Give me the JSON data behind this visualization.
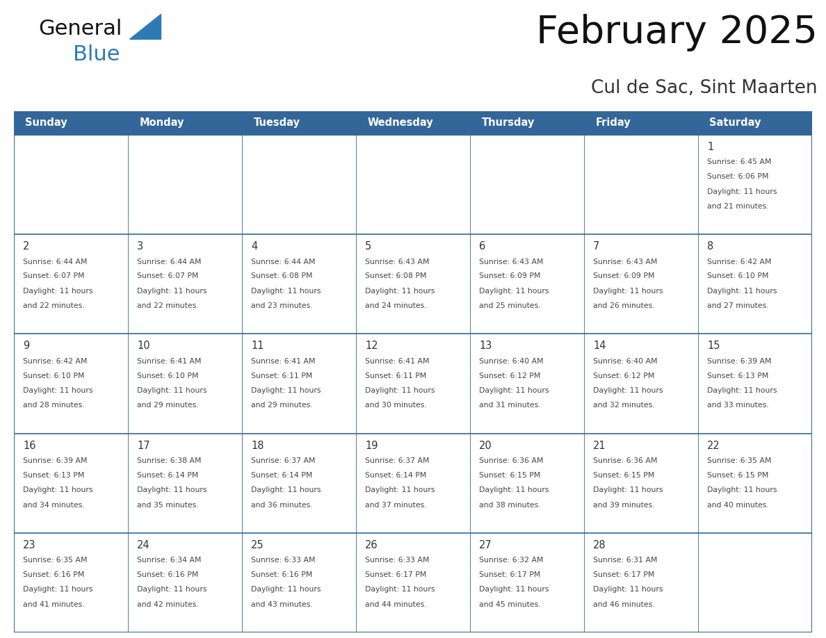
{
  "title": "February 2025",
  "subtitle": "Cul de Sac, Sint Maarten",
  "days_of_week": [
    "Sunday",
    "Monday",
    "Tuesday",
    "Wednesday",
    "Thursday",
    "Friday",
    "Saturday"
  ],
  "header_bg": "#336699",
  "header_text": "#ffffff",
  "cell_border_color": "#336699",
  "row_divider_color": "#336699",
  "cell_bg": "#ffffff",
  "day_number_color": "#333333",
  "cell_text_color": "#444444",
  "logo_general_color": "#111111",
  "logo_blue_color": "#2e7ab5",
  "calendar": [
    [
      null,
      null,
      null,
      null,
      null,
      null,
      {
        "day": 1,
        "sunrise": "6:45 AM",
        "sunset": "6:06 PM",
        "daylight_hours": 11,
        "daylight_minutes": 21
      }
    ],
    [
      {
        "day": 2,
        "sunrise": "6:44 AM",
        "sunset": "6:07 PM",
        "daylight_hours": 11,
        "daylight_minutes": 22
      },
      {
        "day": 3,
        "sunrise": "6:44 AM",
        "sunset": "6:07 PM",
        "daylight_hours": 11,
        "daylight_minutes": 22
      },
      {
        "day": 4,
        "sunrise": "6:44 AM",
        "sunset": "6:08 PM",
        "daylight_hours": 11,
        "daylight_minutes": 23
      },
      {
        "day": 5,
        "sunrise": "6:43 AM",
        "sunset": "6:08 PM",
        "daylight_hours": 11,
        "daylight_minutes": 24
      },
      {
        "day": 6,
        "sunrise": "6:43 AM",
        "sunset": "6:09 PM",
        "daylight_hours": 11,
        "daylight_minutes": 25
      },
      {
        "day": 7,
        "sunrise": "6:43 AM",
        "sunset": "6:09 PM",
        "daylight_hours": 11,
        "daylight_minutes": 26
      },
      {
        "day": 8,
        "sunrise": "6:42 AM",
        "sunset": "6:10 PM",
        "daylight_hours": 11,
        "daylight_minutes": 27
      }
    ],
    [
      {
        "day": 9,
        "sunrise": "6:42 AM",
        "sunset": "6:10 PM",
        "daylight_hours": 11,
        "daylight_minutes": 28
      },
      {
        "day": 10,
        "sunrise": "6:41 AM",
        "sunset": "6:10 PM",
        "daylight_hours": 11,
        "daylight_minutes": 29
      },
      {
        "day": 11,
        "sunrise": "6:41 AM",
        "sunset": "6:11 PM",
        "daylight_hours": 11,
        "daylight_minutes": 29
      },
      {
        "day": 12,
        "sunrise": "6:41 AM",
        "sunset": "6:11 PM",
        "daylight_hours": 11,
        "daylight_minutes": 30
      },
      {
        "day": 13,
        "sunrise": "6:40 AM",
        "sunset": "6:12 PM",
        "daylight_hours": 11,
        "daylight_minutes": 31
      },
      {
        "day": 14,
        "sunrise": "6:40 AM",
        "sunset": "6:12 PM",
        "daylight_hours": 11,
        "daylight_minutes": 32
      },
      {
        "day": 15,
        "sunrise": "6:39 AM",
        "sunset": "6:13 PM",
        "daylight_hours": 11,
        "daylight_minutes": 33
      }
    ],
    [
      {
        "day": 16,
        "sunrise": "6:39 AM",
        "sunset": "6:13 PM",
        "daylight_hours": 11,
        "daylight_minutes": 34
      },
      {
        "day": 17,
        "sunrise": "6:38 AM",
        "sunset": "6:14 PM",
        "daylight_hours": 11,
        "daylight_minutes": 35
      },
      {
        "day": 18,
        "sunrise": "6:37 AM",
        "sunset": "6:14 PM",
        "daylight_hours": 11,
        "daylight_minutes": 36
      },
      {
        "day": 19,
        "sunrise": "6:37 AM",
        "sunset": "6:14 PM",
        "daylight_hours": 11,
        "daylight_minutes": 37
      },
      {
        "day": 20,
        "sunrise": "6:36 AM",
        "sunset": "6:15 PM",
        "daylight_hours": 11,
        "daylight_minutes": 38
      },
      {
        "day": 21,
        "sunrise": "6:36 AM",
        "sunset": "6:15 PM",
        "daylight_hours": 11,
        "daylight_minutes": 39
      },
      {
        "day": 22,
        "sunrise": "6:35 AM",
        "sunset": "6:15 PM",
        "daylight_hours": 11,
        "daylight_minutes": 40
      }
    ],
    [
      {
        "day": 23,
        "sunrise": "6:35 AM",
        "sunset": "6:16 PM",
        "daylight_hours": 11,
        "daylight_minutes": 41
      },
      {
        "day": 24,
        "sunrise": "6:34 AM",
        "sunset": "6:16 PM",
        "daylight_hours": 11,
        "daylight_minutes": 42
      },
      {
        "day": 25,
        "sunrise": "6:33 AM",
        "sunset": "6:16 PM",
        "daylight_hours": 11,
        "daylight_minutes": 43
      },
      {
        "day": 26,
        "sunrise": "6:33 AM",
        "sunset": "6:17 PM",
        "daylight_hours": 11,
        "daylight_minutes": 44
      },
      {
        "day": 27,
        "sunrise": "6:32 AM",
        "sunset": "6:17 PM",
        "daylight_hours": 11,
        "daylight_minutes": 45
      },
      {
        "day": 28,
        "sunrise": "6:31 AM",
        "sunset": "6:17 PM",
        "daylight_hours": 11,
        "daylight_minutes": 46
      },
      null
    ]
  ]
}
